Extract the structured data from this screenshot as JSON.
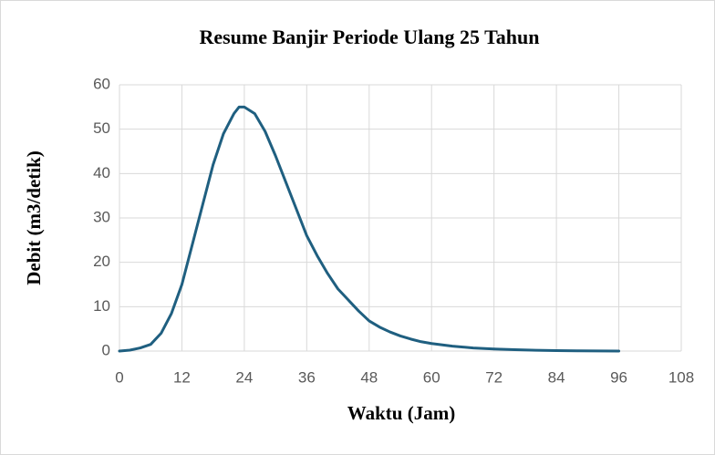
{
  "chart_data": {
    "type": "line",
    "title": "Resume Banjir Periode Ulang 25 Tahun",
    "x_label": "Waktu (Jam)",
    "y_label": "Debit (m3/detik)",
    "x": [
      0,
      2,
      4,
      6,
      8,
      10,
      12,
      14,
      16,
      18,
      20,
      22,
      23,
      24,
      26,
      28,
      30,
      32,
      34,
      36,
      38,
      40,
      42,
      44,
      46,
      48,
      50,
      52,
      54,
      56,
      58,
      60,
      64,
      68,
      72,
      76,
      80,
      84,
      88,
      92,
      96
    ],
    "series": [
      {
        "name": "Debit",
        "color": "#1f5f80",
        "values": [
          0,
          0.2,
          0.7,
          1.5,
          4,
          8.5,
          15,
          24,
          33,
          42,
          49,
          53.5,
          55,
          55,
          53.5,
          49.5,
          44,
          38,
          32,
          26,
          21.5,
          17.5,
          14,
          11.5,
          9,
          6.8,
          5.4,
          4.3,
          3.4,
          2.7,
          2.1,
          1.7,
          1.1,
          0.7,
          0.45,
          0.3,
          0.18,
          0.1,
          0.05,
          0.02,
          0
        ]
      }
    ],
    "xlim": [
      0,
      108
    ],
    "xticks": [
      0,
      12,
      24,
      36,
      48,
      60,
      72,
      84,
      96,
      108
    ],
    "ylim": [
      0,
      60
    ],
    "yticks": [
      0,
      10,
      20,
      30,
      40,
      50,
      60
    ],
    "grid": true
  }
}
